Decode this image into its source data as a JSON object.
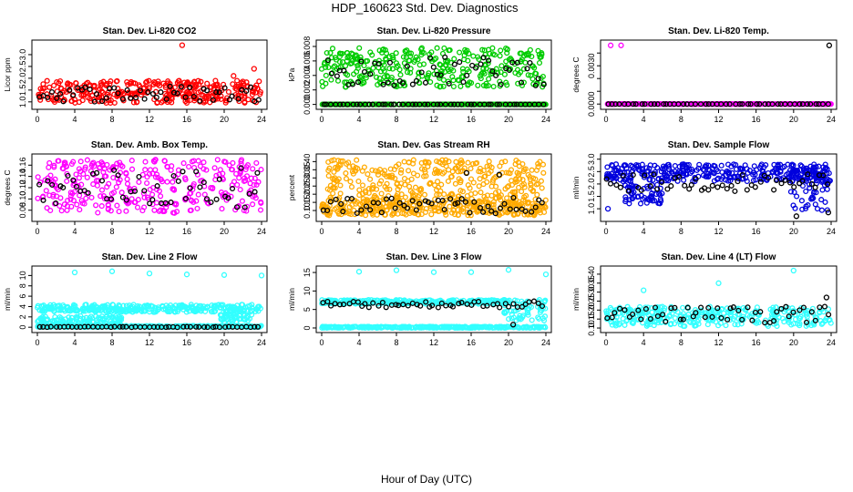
{
  "figure": {
    "title": "HDP_160623  Std. Dev. Diagnostics",
    "xlabel": "Hour of Day (UTC)"
  },
  "chart_data": [
    {
      "type": "scatter",
      "title": "Stan. Dev. Li-820 CO2",
      "ylabel": "Licor ppm",
      "xlim": [
        0,
        24
      ],
      "ylim": [
        0.8,
        3.5
      ],
      "yticks": [
        1.0,
        1.5,
        2.0,
        2.5,
        3.0
      ],
      "ytick_labels": [
        "1.0",
        "1.5",
        "2.0",
        "2.5",
        "3.0"
      ],
      "color": "#ff0000",
      "cloud": [
        {
          "x": [
            0,
            24
          ],
          "y": [
            0.95,
            1.9
          ]
        }
      ],
      "black": [
        {
          "x": [
            0,
            24
          ],
          "y": [
            1.0,
            1.7
          ]
        }
      ],
      "outliers": [
        {
          "x": 15.5,
          "y": 3.4
        },
        {
          "x": 23.2,
          "y": 2.4
        },
        {
          "x": 21,
          "y": 2.1
        }
      ]
    },
    {
      "type": "scatter",
      "title": "Stan. Dev. Li-820 Pressure",
      "ylabel": "kPa",
      "xlim": [
        0,
        24
      ],
      "ylim": [
        -0.0003,
        0.0085
      ],
      "yticks": [
        0,
        0.002,
        0.004,
        0.006,
        0.008
      ],
      "ytick_labels": [
        "0.000",
        "0.002",
        "0.004",
        "0.006",
        "0.008"
      ],
      "color": "#00cc00",
      "cloud": [
        {
          "x": [
            0,
            24
          ],
          "y": [
            0.0,
            0.0
          ]
        },
        {
          "x": [
            0,
            24
          ],
          "y": [
            0.0024,
            0.0078
          ]
        }
      ],
      "black": [
        {
          "x": [
            0,
            24
          ],
          "y": [
            0.0,
            0.0
          ]
        },
        {
          "x": [
            0.5,
            24
          ],
          "y": [
            0.0026,
            0.0066
          ]
        }
      ],
      "outliers": []
    },
    {
      "type": "scatter",
      "title": "Stan. Dev. Li-820 Temp.",
      "ylabel": "degrees C",
      "xlim": [
        0,
        24
      ],
      "ylim": [
        -0.0002,
        0.0048
      ],
      "yticks": [
        0,
        0.001,
        0.002,
        0.003,
        0.004
      ],
      "ytick_labels": [
        "0.0000",
        "",
        "",
        "0.0030",
        ""
      ],
      "color": "#ff00ff",
      "cloud": [
        {
          "x": [
            0,
            24
          ],
          "y": [
            0.0,
            0.0
          ]
        }
      ],
      "black": [
        {
          "x": [
            0,
            24
          ],
          "y": [
            0.0,
            0.0
          ]
        }
      ],
      "outliers": [
        {
          "x": 0.5,
          "y": 0.0046
        },
        {
          "x": 1.6,
          "y": 0.0046
        },
        {
          "x": 23.8,
          "y": 0.0046,
          "black": true
        }
      ]
    },
    {
      "type": "scatter",
      "title": "Stan. Dev. Amb. Box Temp.",
      "ylabel": "degrees C",
      "xlim": [
        0,
        24
      ],
      "ylim": [
        0.065,
        0.175
      ],
      "yticks": [
        0.08,
        0.1,
        0.12,
        0.14,
        0.16
      ],
      "ytick_labels": [
        "0.08",
        "0.10",
        "0.12",
        "0.14",
        "0.16"
      ],
      "color": "#ff00ff",
      "cloud": [
        {
          "x": [
            0,
            24
          ],
          "y": [
            0.075,
            0.17
          ]
        }
      ],
      "black": [
        {
          "x": [
            0,
            24
          ],
          "y": [
            0.085,
            0.155
          ]
        }
      ],
      "outliers": []
    },
    {
      "type": "scatter",
      "title": "Stan. Dev. Gas Stream RH",
      "ylabel": "percent",
      "xlim": [
        0,
        24
      ],
      "ylim": [
        0.05,
        0.43
      ],
      "yticks": [
        0.1,
        0.15,
        0.2,
        0.25,
        0.3,
        0.35,
        0.4
      ],
      "ytick_labels": [
        "0.10",
        "0.15",
        "0.20",
        "0.25",
        "0.30",
        "0.35",
        "0.40"
      ],
      "color": "#ffaa00",
      "cloud": [
        {
          "x": [
            0,
            24
          ],
          "y": [
            0.07,
            0.17
          ]
        },
        {
          "x": [
            0.5,
            24
          ],
          "y": [
            0.17,
            0.41
          ]
        }
      ],
      "black": [
        {
          "x": [
            0,
            24
          ],
          "y": [
            0.08,
            0.18
          ]
        }
      ],
      "outliers": [
        {
          "x": 15.5,
          "y": 0.33,
          "black": true
        },
        {
          "x": 19,
          "y": 0.32,
          "black": true
        }
      ]
    },
    {
      "type": "scatter",
      "title": "Stan. Dev. Sample Flow",
      "ylabel": "ml/min",
      "xlim": [
        0,
        24
      ],
      "ylim": [
        0.6,
        3.1
      ],
      "yticks": [
        1.0,
        1.5,
        2.0,
        2.5,
        3.0
      ],
      "ytick_labels": [
        "1.0",
        "1.5",
        "2.0",
        "2.5",
        "3.0"
      ],
      "color": "#0000dd",
      "cloud": [
        {
          "x": [
            0,
            24
          ],
          "y": [
            2.1,
            2.8
          ]
        },
        {
          "x": [
            2,
            6
          ],
          "y": [
            1.2,
            2.0
          ]
        },
        {
          "x": [
            19.5,
            24
          ],
          "y": [
            0.9,
            2.6
          ]
        }
      ],
      "black": [
        {
          "x": [
            0,
            24
          ],
          "y": [
            1.7,
            2.4
          ]
        }
      ],
      "outliers": [
        {
          "x": 0.2,
          "y": 1.0
        },
        {
          "x": 20.3,
          "y": 0.7,
          "black": true
        },
        {
          "x": 23.7,
          "y": 0.85,
          "black": true
        }
      ]
    },
    {
      "type": "scatter",
      "title": "Stan. Dev. Line 2 Flow",
      "ylabel": "ml/min",
      "xlim": [
        0,
        24
      ],
      "ylim": [
        -0.5,
        11.3
      ],
      "yticks": [
        0,
        2,
        4,
        6,
        8,
        10
      ],
      "ytick_labels": [
        "0",
        "2",
        "4",
        "6",
        "8",
        "10"
      ],
      "color": "#33ffff",
      "cloud": [
        {
          "x": [
            0,
            24
          ],
          "y": [
            2.9,
            4.4
          ]
        },
        {
          "x": [
            0,
            24
          ],
          "y": [
            0.0,
            0.3
          ]
        },
        {
          "x": [
            0,
            9
          ],
          "y": [
            0.3,
            2.2
          ]
        },
        {
          "x": [
            19.5,
            23
          ],
          "y": [
            0.8,
            2.6
          ]
        }
      ],
      "black": [
        {
          "x": [
            0,
            24
          ],
          "y": [
            0.0,
            0.1
          ]
        }
      ],
      "outliers": [
        {
          "x": 4,
          "y": 10.6
        },
        {
          "x": 8,
          "y": 10.8
        },
        {
          "x": 12,
          "y": 10.4
        },
        {
          "x": 16,
          "y": 10.2
        },
        {
          "x": 20,
          "y": 10.1
        },
        {
          "x": 24,
          "y": 10.0
        }
      ]
    },
    {
      "type": "scatter",
      "title": "Stan. Dev. Line 3 Flow",
      "ylabel": "ml/min",
      "xlim": [
        0,
        24
      ],
      "ylim": [
        -0.5,
        16
      ],
      "yticks": [
        0,
        5,
        10,
        15
      ],
      "ytick_labels": [
        "0",
        "5",
        "10",
        "15"
      ],
      "color": "#33ffff",
      "cloud": [
        {
          "x": [
            0,
            20
          ],
          "y": [
            6.5,
            7.6
          ]
        },
        {
          "x": [
            0,
            24
          ],
          "y": [
            0,
            0.4
          ]
        },
        {
          "x": [
            19.5,
            24
          ],
          "y": [
            2,
            8
          ]
        }
      ],
      "black": [
        {
          "x": [
            0,
            24
          ],
          "y": [
            5.5,
            7.3
          ]
        }
      ],
      "outliers": [
        {
          "x": 4,
          "y": 15.2
        },
        {
          "x": 8,
          "y": 15.6
        },
        {
          "x": 12,
          "y": 15.1
        },
        {
          "x": 16,
          "y": 15.1
        },
        {
          "x": 20,
          "y": 15.7
        },
        {
          "x": 24,
          "y": 14.5
        },
        {
          "x": 20.5,
          "y": 0.9,
          "black": true
        }
      ]
    },
    {
      "type": "scatter",
      "title": "Stan. Dev. Line 4 (LT) Flow",
      "ylabel": "ml/min",
      "xlim": [
        0,
        24
      ],
      "ylim": [
        0.09,
        0.43
      ],
      "yticks": [
        0.1,
        0.15,
        0.2,
        0.25,
        0.3,
        0.35,
        0.4
      ],
      "ytick_labels": [
        "0.10",
        "0.15",
        "0.20",
        "0.25",
        "0.30",
        "0.35",
        "0.40"
      ],
      "color": "#33ffff",
      "cloud": [
        {
          "x": [
            0,
            24
          ],
          "y": [
            0.11,
            0.22
          ]
        }
      ],
      "black": [
        {
          "x": [
            0,
            24
          ],
          "y": [
            0.13,
            0.22
          ]
        }
      ],
      "outliers": [
        {
          "x": 4,
          "y": 0.31
        },
        {
          "x": 12,
          "y": 0.35
        },
        {
          "x": 20,
          "y": 0.42
        },
        {
          "x": 23.5,
          "y": 0.27,
          "black": true
        }
      ]
    }
  ],
  "xaxis": {
    "ticks": [
      0,
      4,
      8,
      12,
      16,
      20,
      24
    ],
    "tick_labels": [
      "0",
      "4",
      "8",
      "12",
      "16",
      "20",
      "24"
    ]
  }
}
